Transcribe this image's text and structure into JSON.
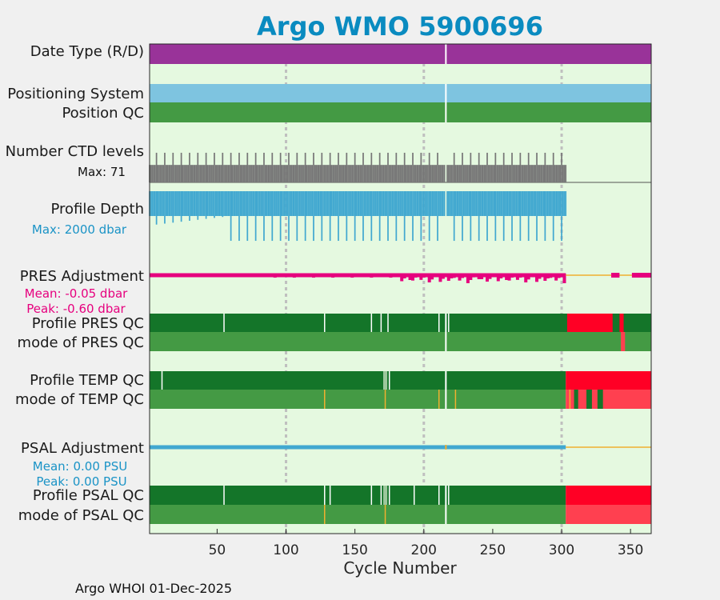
{
  "chart_data": {
    "type": "timeline",
    "title": "Argo WMO 5900696",
    "xlabel": "Cycle Number",
    "xlim": [
      1,
      365
    ],
    "xticks": [
      50,
      100,
      150,
      200,
      250,
      300,
      350
    ],
    "grid_x": [
      100,
      200,
      300
    ],
    "footer": "Argo WHOI 01-Dec-2025",
    "last_profile_cycle": 303,
    "gap_cycle": 216,
    "colors": {
      "background": "#e5f9e0",
      "date_type": "#993399",
      "positioning": "#7ec4e0",
      "qc_good": "#147529",
      "qc_mode_good": "#449a44",
      "qc_bad": "#ff0025",
      "qc_bad_mode": "#ff4050",
      "qc_probable": "#f0b030",
      "ctd_levels": "#777777",
      "depth": "#41a8d0",
      "pres_adj": "#e6007e",
      "psal_adj": "#41a8d0",
      "title": "#0a8bc0",
      "grid": "#bfbfbf"
    },
    "rows": {
      "date_type": {
        "label": "Date Type (R/D)"
      },
      "positioning": {
        "label": "Positioning System"
      },
      "position_qc": {
        "label": "Position QC"
      },
      "ctd": {
        "label": "Number CTD levels",
        "max_text": "Max: 71",
        "max": 71
      },
      "depth": {
        "label": "Profile Depth",
        "max_text": "Max: 2000 dbar",
        "max": 2000
      },
      "pres_adj": {
        "label": "PRES Adjustment",
        "mean_text": "Mean: -0.05 dbar",
        "peak_text": "Peak: -0.60 dbar"
      },
      "pres_qc": {
        "label": "Profile PRES QC",
        "bad_ranges": [
          [
            304,
            337
          ],
          [
            342,
            345
          ]
        ],
        "white_ticks": [
          55,
          128,
          162,
          169,
          174,
          211,
          218
        ]
      },
      "pres_mode": {
        "label": "mode of PRES QC",
        "bad_ranges": [
          [
            343,
            346
          ]
        ]
      },
      "temp_qc": {
        "label": "Profile TEMP QC",
        "bad_ranges": [
          [
            304,
            365
          ]
        ],
        "white_ticks": [
          10,
          171,
          175
        ]
      },
      "temp_mode": {
        "label": "mode of TEMP QC",
        "bad_ranges": [
          [
            304,
            365
          ]
        ],
        "probable_ticks": [
          128,
          172,
          211,
          223,
          306
        ]
      },
      "psal_adj": {
        "label": "PSAL Adjustment",
        "mean_text": "Mean: 0.00 PSU",
        "peak_text": "Peak: 0.00 PSU"
      },
      "psal_qc": {
        "label": "Profile PSAL QC",
        "bad_ranges": [
          [
            304,
            365
          ]
        ],
        "white_ticks": [
          55,
          128,
          132,
          162,
          169,
          173,
          175,
          193,
          211,
          218
        ]
      },
      "psal_mode": {
        "label": "mode of PSAL QC",
        "bad_ranges": [
          [
            304,
            365
          ]
        ],
        "probable_ticks": [
          128,
          172
        ]
      }
    }
  }
}
